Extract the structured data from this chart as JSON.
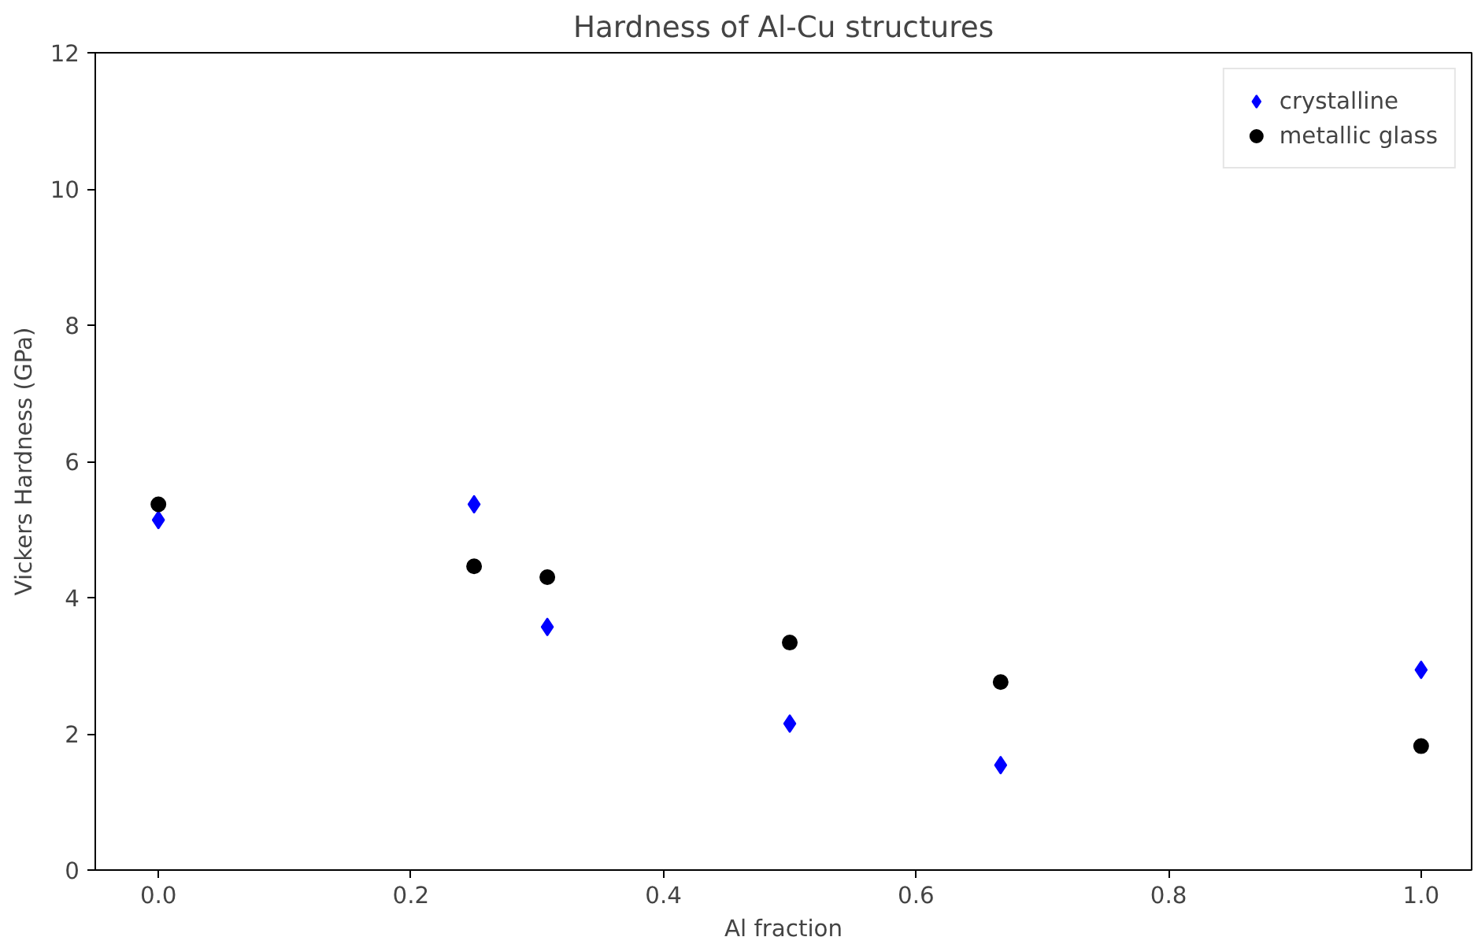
{
  "chart_data": {
    "type": "scatter",
    "title": "Hardness of Al-Cu structures",
    "xlabel": "Al fraction",
    "ylabel": "Vickers Hardness (GPa)",
    "series": [
      {
        "name": "crystalline",
        "color": "#0000ff",
        "marker": "diamond",
        "x": [
          0,
          0.25,
          0.308,
          0.5,
          0.667,
          1.0
        ],
        "values": [
          5.14,
          5.37,
          3.57,
          2.15,
          1.54,
          2.94
        ]
      },
      {
        "name": "metallic glass",
        "color": "#000000",
        "marker": "circle",
        "x": [
          0,
          0.25,
          0.308,
          0.5,
          0.667,
          1.0
        ],
        "values": [
          5.37,
          4.46,
          4.3,
          3.34,
          2.76,
          1.82
        ]
      }
    ],
    "xlim": [
      -0.05,
      1.04
    ],
    "ylim": [
      0,
      12
    ],
    "xticks": [
      {
        "value": 0,
        "label": "0.0"
      },
      0.2,
      0.4,
      0.6,
      0.8,
      {
        "value": 1,
        "label": "1.0"
      }
    ],
    "yticks": [
      0,
      2,
      4,
      6,
      8,
      10,
      12
    ],
    "grid": false,
    "legend": "top right"
  }
}
